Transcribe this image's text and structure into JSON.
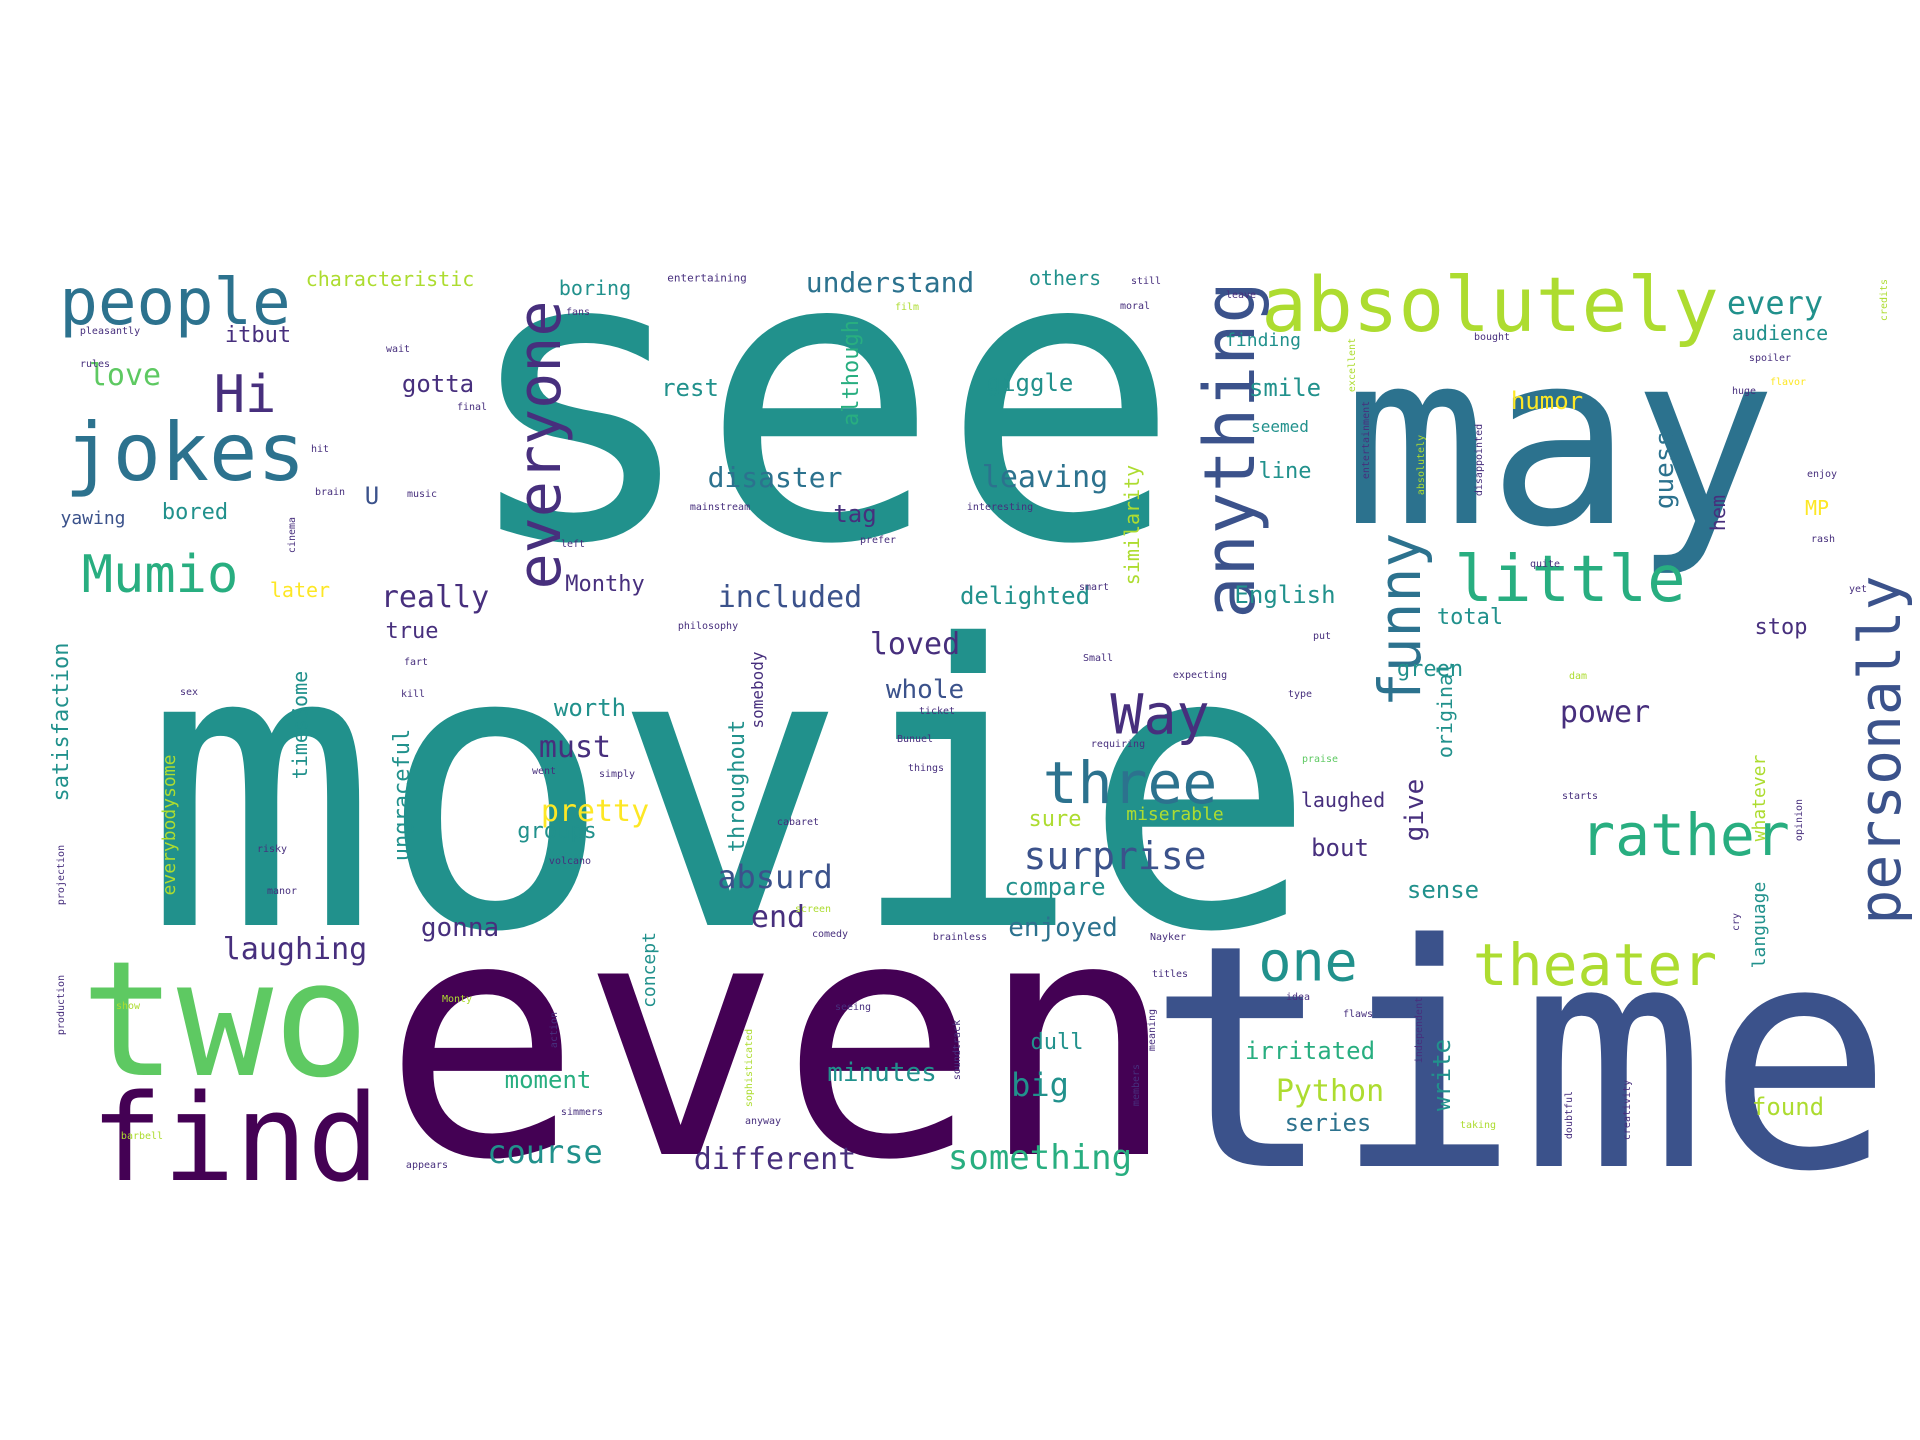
{
  "palette": {
    "dark_purple": "#440154",
    "indigo": "#472f7d",
    "slate_blue": "#3b528b",
    "steel_blue": "#2c728e",
    "teal": "#21918c",
    "sea_green": "#28ae80",
    "green": "#5ec962",
    "lime": "#addc30",
    "yellow": "#fde725"
  },
  "words": [
    {
      "text": "see",
      "weight": 1.0
    },
    {
      "text": "movie",
      "weight": 0.98
    },
    {
      "text": "even",
      "weight": 0.85
    },
    {
      "text": "time",
      "weight": 0.82
    },
    {
      "text": "may",
      "weight": 0.7
    },
    {
      "text": "two",
      "weight": 0.55
    },
    {
      "text": "find",
      "weight": 0.45
    },
    {
      "text": "absolutely",
      "weight": 0.3
    },
    {
      "text": "people",
      "weight": 0.3
    },
    {
      "text": "jokes",
      "weight": 0.32
    },
    {
      "text": "anything",
      "weight": 0.3
    },
    {
      "text": "everyone",
      "weight": 0.3
    },
    {
      "text": "funny",
      "weight": 0.28
    },
    {
      "text": "little",
      "weight": 0.3
    },
    {
      "text": "personally",
      "weight": 0.3
    },
    {
      "text": "rather",
      "weight": 0.3
    },
    {
      "text": "theater",
      "weight": 0.28
    },
    {
      "text": "three",
      "weight": 0.28
    },
    {
      "text": "Way",
      "weight": 0.28
    },
    {
      "text": "Mumio",
      "weight": 0.27
    },
    {
      "text": "Hi",
      "weight": 0.25
    },
    {
      "text": "one",
      "weight": 0.27
    },
    {
      "text": "surprise",
      "weight": 0.2
    },
    {
      "text": "something",
      "weight": 0.18
    },
    {
      "text": "different",
      "weight": 0.16
    },
    {
      "text": "course",
      "weight": 0.16
    },
    {
      "text": "Python",
      "weight": 0.17
    },
    {
      "text": "every",
      "weight": 0.15
    },
    {
      "text": "love",
      "weight": 0.15
    },
    {
      "text": "gotta",
      "weight": 0.13
    },
    {
      "text": "rest",
      "weight": 0.12
    },
    {
      "text": "giggle",
      "weight": 0.13
    },
    {
      "text": "smile",
      "weight": 0.12
    },
    {
      "text": "leaving",
      "weight": 0.15
    },
    {
      "text": "disaster",
      "weight": 0.15
    },
    {
      "text": "included",
      "weight": 0.15
    },
    {
      "text": "delighted",
      "weight": 0.14
    },
    {
      "text": "really",
      "weight": 0.14
    },
    {
      "text": "loved",
      "weight": 0.14
    },
    {
      "text": "whole",
      "weight": 0.13
    },
    {
      "text": "worth",
      "weight": 0.12
    },
    {
      "text": "must",
      "weight": 0.14
    },
    {
      "text": "pretty",
      "weight": 0.14
    },
    {
      "text": "absurd",
      "weight": 0.15
    },
    {
      "text": "end",
      "weight": 0.14
    },
    {
      "text": "laughing",
      "weight": 0.14
    },
    {
      "text": "gonna",
      "weight": 0.12
    },
    {
      "text": "enjoyed",
      "weight": 0.13
    },
    {
      "text": "compare",
      "weight": 0.12
    },
    {
      "text": "power",
      "weight": 0.15
    },
    {
      "text": "guess",
      "weight": 0.13
    },
    {
      "text": "humor",
      "weight": 0.12
    },
    {
      "text": "understand",
      "weight": 0.13
    },
    {
      "text": "characteristic",
      "weight": 0.1
    },
    {
      "text": "boring",
      "weight": 0.1
    },
    {
      "text": "others",
      "weight": 0.1
    },
    {
      "text": "audience",
      "weight": 0.1
    },
    {
      "text": "bored",
      "weight": 0.11
    },
    {
      "text": "yawing",
      "weight": 0.09
    },
    {
      "text": "itbut",
      "weight": 0.1
    },
    {
      "text": "tag",
      "weight": 0.11
    },
    {
      "text": "although",
      "weight": 0.1
    },
    {
      "text": "similarity",
      "weight": 0.1
    },
    {
      "text": "English",
      "weight": 0.11
    },
    {
      "text": "line",
      "weight": 0.11
    },
    {
      "text": "seemed",
      "weight": 0.09
    },
    {
      "text": "finding",
      "weight": 0.09
    },
    {
      "text": "total",
      "weight": 0.11
    },
    {
      "text": "stop",
      "weight": 0.11
    },
    {
      "text": "green",
      "weight": 0.11
    },
    {
      "text": "original",
      "weight": 0.09
    },
    {
      "text": "give",
      "weight": 0.11
    },
    {
      "text": "bout",
      "weight": 0.11
    },
    {
      "text": "sense",
      "weight": 0.11
    },
    {
      "text": "laughed",
      "weight": 0.1
    },
    {
      "text": "miserable",
      "weight": 0.09
    },
    {
      "text": "sure",
      "weight": 0.11
    },
    {
      "text": "groups",
      "weight": 0.1
    },
    {
      "text": "irritated",
      "weight": 0.11
    },
    {
      "text": "dull",
      "weight": 0.1
    },
    {
      "text": "big",
      "weight": 0.13
    },
    {
      "text": "minutes",
      "weight": 0.12
    },
    {
      "text": "moment",
      "weight": 0.1
    },
    {
      "text": "series",
      "weight": 0.11
    },
    {
      "text": "found",
      "weight": 0.11
    },
    {
      "text": "write",
      "weight": 0.11
    },
    {
      "text": "language",
      "weight": 0.09
    },
    {
      "text": "whatever",
      "weight": 0.09
    },
    {
      "text": "throughout",
      "weight": 0.1
    },
    {
      "text": "ungraceful",
      "weight": 0.1
    },
    {
      "text": "satisfaction",
      "weight": 0.1
    },
    {
      "text": "everybodysome",
      "weight": 0.09
    },
    {
      "text": "timesSome",
      "weight": 0.09
    },
    {
      "text": "concept",
      "weight": 0.09
    },
    {
      "text": "Monthy",
      "weight": 0.1
    },
    {
      "text": "later",
      "weight": 0.09
    },
    {
      "text": "true",
      "weight": 0.1
    },
    {
      "text": "hem",
      "weight": 0.09
    },
    {
      "text": "MP",
      "weight": 0.09
    },
    {
      "text": "U",
      "weight": 0.1
    },
    {
      "text": "somebody",
      "weight": 0.08
    },
    {
      "text": "entertaining",
      "weight": 0.05
    },
    {
      "text": "pleasantly",
      "weight": 0.05
    },
    {
      "text": "rules",
      "weight": 0.05
    },
    {
      "text": "fans",
      "weight": 0.05
    },
    {
      "text": "wait",
      "weight": 0.05
    },
    {
      "text": "final",
      "weight": 0.05
    },
    {
      "text": "film",
      "weight": 0.05
    },
    {
      "text": "moral",
      "weight": 0.05
    },
    {
      "text": "still",
      "weight": 0.05
    },
    {
      "text": "leave",
      "weight": 0.05
    },
    {
      "text": "bought",
      "weight": 0.05
    },
    {
      "text": "spoiler",
      "weight": 0.05
    },
    {
      "text": "flavor",
      "weight": 0.05
    },
    {
      "text": "credits",
      "weight": 0.05
    },
    {
      "text": "huge",
      "weight": 0.05
    },
    {
      "text": "enjoy",
      "weight": 0.05
    },
    {
      "text": "rash",
      "weight": 0.05
    },
    {
      "text": "yet",
      "weight": 0.05
    },
    {
      "text": "music",
      "weight": 0.05
    },
    {
      "text": "brain",
      "weight": 0.05
    },
    {
      "text": "cinema",
      "weight": 0.05
    },
    {
      "text": "mainstream",
      "weight": 0.05
    },
    {
      "text": "interesting",
      "weight": 0.05
    },
    {
      "text": "prefer",
      "weight": 0.05
    },
    {
      "text": "left",
      "weight": 0.05
    },
    {
      "text": "philosophy",
      "weight": 0.05
    },
    {
      "text": "smart",
      "weight": 0.05
    },
    {
      "text": "Small",
      "weight": 0.05
    },
    {
      "text": "expecting",
      "weight": 0.05
    },
    {
      "text": "put",
      "weight": 0.05
    },
    {
      "text": "ticket",
      "weight": 0.05
    },
    {
      "text": "Bunuel",
      "weight": 0.05
    },
    {
      "text": "things",
      "weight": 0.05
    },
    {
      "text": "requiring",
      "weight": 0.05
    },
    {
      "text": "praise",
      "weight": 0.05
    },
    {
      "text": "simply",
      "weight": 0.05
    },
    {
      "text": "went",
      "weight": 0.05
    },
    {
      "text": "cabaret",
      "weight": 0.05
    },
    {
      "text": "volcano",
      "weight": 0.05
    },
    {
      "text": "comedy",
      "weight": 0.05
    },
    {
      "text": "brainless",
      "weight": 0.05
    },
    {
      "text": "screen",
      "weight": 0.05
    },
    {
      "text": "Nayker",
      "weight": 0.05
    },
    {
      "text": "titles",
      "weight": 0.05
    },
    {
      "text": "flaws",
      "weight": 0.05
    },
    {
      "text": "idea",
      "weight": 0.05
    },
    {
      "text": "seeing",
      "weight": 0.05
    },
    {
      "text": "soundtrack",
      "weight": 0.05
    },
    {
      "text": "sophisticated",
      "weight": 0.05
    },
    {
      "text": "simmers",
      "weight": 0.05
    },
    {
      "text": "anyway",
      "weight": 0.05
    },
    {
      "text": "appears",
      "weight": 0.05
    },
    {
      "text": "barbell",
      "weight": 0.05
    },
    {
      "text": "show",
      "weight": 0.05
    },
    {
      "text": "Monty",
      "weight": 0.05
    },
    {
      "text": "production",
      "weight": 0.05
    },
    {
      "text": "projection",
      "weight": 0.05
    },
    {
      "text": "risky",
      "weight": 0.05
    },
    {
      "text": "manor",
      "weight": 0.05
    },
    {
      "text": "action",
      "weight": 0.05
    },
    {
      "text": "doubtful",
      "weight": 0.05
    },
    {
      "text": "creativity",
      "weight": 0.05
    },
    {
      "text": "independent",
      "weight": 0.05
    },
    {
      "text": "taking",
      "weight": 0.05
    },
    {
      "text": "members",
      "weight": 0.05
    },
    {
      "text": "meaning",
      "weight": 0.05
    },
    {
      "text": "cry",
      "weight": 0.05
    },
    {
      "text": "opinion",
      "weight": 0.05
    },
    {
      "text": "entertainment",
      "weight": 0.05
    },
    {
      "text": "disappointed",
      "weight": 0.05
    },
    {
      "text": "excellent",
      "weight": 0.05
    },
    {
      "text": "absolutely",
      "weight": 0.05
    },
    {
      "text": "kill",
      "weight": 0.05
    },
    {
      "text": "fart",
      "weight": 0.05
    },
    {
      "text": "sex",
      "weight": 0.05
    },
    {
      "text": "dam",
      "weight": 0.05
    },
    {
      "text": "starts",
      "weight": 0.05
    },
    {
      "text": "quite",
      "weight": 0.05
    },
    {
      "text": "hit",
      "weight": 0.05
    },
    {
      "text": "type",
      "weight": 0.05
    }
  ]
}
